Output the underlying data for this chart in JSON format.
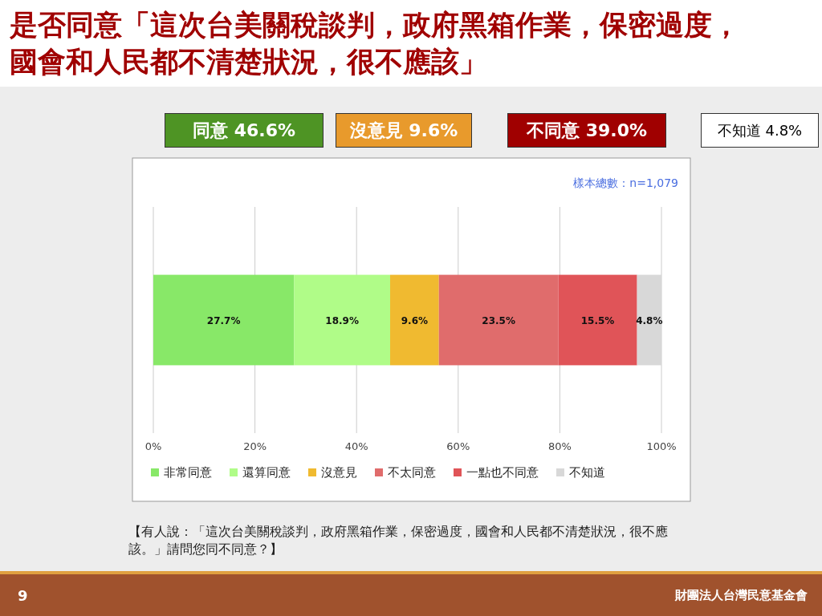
{
  "chart_data": {
    "type": "bar",
    "orientation": "horizontal",
    "stacked": true,
    "title": "是否同意「這次台美關稅談判，政府黑箱作業，保密過度，國會和人民都不清楚狀況，很不應該」",
    "categories": [
      null
    ],
    "series": [
      {
        "name": "非常同意",
        "color": "#88e868",
        "values": [
          27.7
        ]
      },
      {
        "name": "還算同意",
        "color": "#b0fc88",
        "values": [
          18.9
        ]
      },
      {
        "name": "沒意見",
        "color": "#f0ba30",
        "values": [
          9.6
        ]
      },
      {
        "name": "不太同意",
        "color": "#e06c6c",
        "values": [
          23.5
        ]
      },
      {
        "name": "一點也不同意",
        "color": "#e05458",
        "values": [
          15.5
        ]
      },
      {
        "name": "不知道",
        "color": "#d8d8d8",
        "values": [
          4.8
        ]
      }
    ],
    "xlim": [
      0,
      100
    ],
    "xticks": [
      {
        "value": 0,
        "label": "0%"
      },
      {
        "value": 20,
        "label": "20%"
      },
      {
        "value": 40,
        "label": "40%"
      },
      {
        "value": 60,
        "label": "60%"
      },
      {
        "value": 80,
        "label": "80%"
      },
      {
        "value": 100,
        "label": "100%"
      }
    ],
    "value_labels": [
      [
        "27.7%"
      ],
      [
        "18.9%"
      ],
      [
        "9.6%"
      ],
      [
        "23.5%"
      ],
      [
        "15.5%"
      ],
      [
        "4.8%"
      ]
    ],
    "grid": "x",
    "legend": "bottom",
    "annotations": [
      "同意 46.6%",
      "沒意見 9.6%",
      "不同意 39.0%",
      "不知道 4.8%",
      "樣本總數：n=1,079",
      "【有人說：「這次台美關稅談判，政府黑箱作業，保密過度，國會和人民都不清楚狀況，很不應該。」請問您同不同意？】",
      "9",
      "財團法人台灣民意基金會"
    ]
  }
}
